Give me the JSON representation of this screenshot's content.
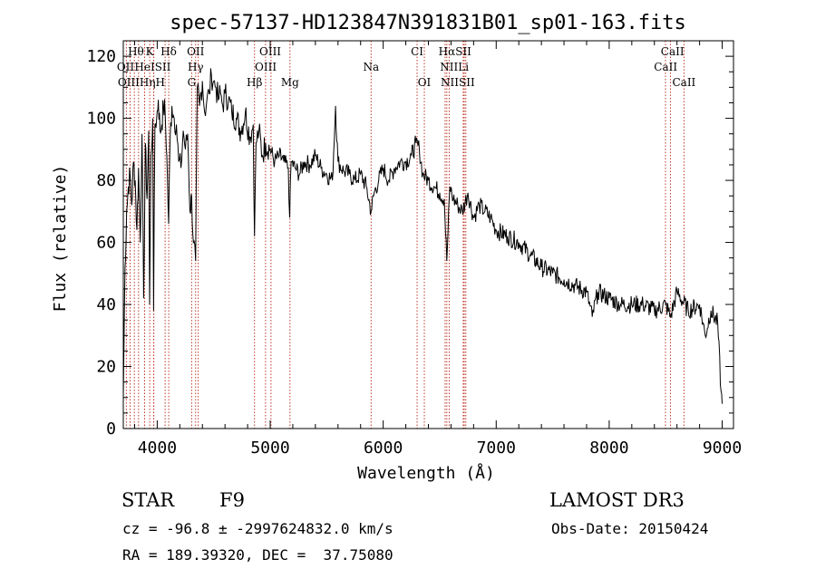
{
  "chart_data": {
    "type": "line",
    "title": "spec-57137-HD123847N391831B01_sp01-163.fits",
    "xlabel": "Wavelength (Å)",
    "ylabel": "Flux (relative)",
    "xlim": [
      3700,
      9100
    ],
    "ylim": [
      0,
      125
    ],
    "xticks": [
      4000,
      5000,
      6000,
      7000,
      8000,
      9000
    ],
    "yticks": [
      0,
      20,
      40,
      60,
      80,
      100,
      120
    ],
    "series": [
      {
        "name": "flux",
        "x": [
          3700,
          3715,
          3730,
          3745,
          3760,
          3775,
          3790,
          3805,
          3820,
          3835,
          3850,
          3865,
          3880,
          3895,
          3910,
          3925,
          3933,
          3945,
          3960,
          3968,
          3980,
          3995,
          4010,
          4025,
          4040,
          4055,
          4070,
          4085,
          4101,
          4115,
          4130,
          4150,
          4170,
          4190,
          4210,
          4230,
          4250,
          4270,
          4290,
          4305,
          4320,
          4340,
          4355,
          4375,
          4400,
          4420,
          4440,
          4460,
          4480,
          4500,
          4520,
          4540,
          4560,
          4580,
          4600,
          4630,
          4660,
          4700,
          4740,
          4780,
          4820,
          4850,
          4861,
          4875,
          4900,
          4930,
          4960,
          5000,
          5040,
          5080,
          5120,
          5160,
          5172,
          5185,
          5220,
          5260,
          5300,
          5350,
          5400,
          5450,
          5500,
          5550,
          5578,
          5600,
          5650,
          5700,
          5750,
          5800,
          5850,
          5893,
          5920,
          5960,
          6000,
          6050,
          6100,
          6150,
          6200,
          6250,
          6290,
          6320,
          6350,
          6400,
          6450,
          6500,
          6540,
          6563,
          6590,
          6620,
          6660,
          6700,
          6750,
          6800,
          6850,
          6900,
          6950,
          7000,
          7100,
          7200,
          7300,
          7400,
          7500,
          7600,
          7700,
          7800,
          7850,
          7900,
          8000,
          8100,
          8200,
          8300,
          8400,
          8500,
          8542,
          8600,
          8700,
          8800,
          8850,
          8900,
          8960,
          8990,
          9000
        ],
        "values": [
          10,
          52,
          70,
          78,
          82,
          72,
          86,
          80,
          64,
          84,
          60,
          95,
          42,
          92,
          74,
          96,
          40,
          88,
          100,
          38,
          98,
          100,
          106,
          96,
          98,
          104,
          102,
          88,
          66,
          94,
          104,
          100,
          98,
          86,
          84,
          96,
          90,
          95,
          70,
          75,
          60,
          54,
          110,
          104,
          112,
          102,
          106,
          108,
          114,
          112,
          110,
          106,
          108,
          104,
          108,
          106,
          102,
          100,
          96,
          102,
          94,
          98,
          62,
          92,
          96,
          88,
          92,
          90,
          86,
          88,
          86,
          84,
          68,
          86,
          84,
          82,
          86,
          85,
          88,
          84,
          82,
          80,
          104,
          86,
          83,
          82,
          80,
          82,
          78,
          70,
          76,
          80,
          84,
          80,
          84,
          86,
          86,
          88,
          92,
          90,
          82,
          80,
          78,
          76,
          74,
          54,
          78,
          74,
          72,
          70,
          76,
          68,
          72,
          70,
          68,
          64,
          62,
          60,
          56,
          52,
          50,
          48,
          46,
          44,
          36,
          44,
          42,
          40,
          40,
          40,
          38,
          40,
          36,
          44,
          38,
          40,
          30,
          38,
          34,
          12,
          8
        ]
      }
    ],
    "lines": [
      {
        "name": "Hε",
        "x": 3970
      },
      {
        "name": "Hζ",
        "x": 3889
      },
      {
        "name": "Hη",
        "x": 3835
      },
      {
        "name": "OII",
        "x": 3727
      },
      {
        "name": "OIII",
        "x": 3760
      },
      {
        "name": "Hθ",
        "x": 3798
      },
      {
        "name": "HeI",
        "x": 3888
      },
      {
        "name": "K",
        "x": 3934
      },
      {
        "name": "H",
        "x": 3968
      },
      {
        "name": "SII",
        "x": 4070
      },
      {
        "name": "Hδ",
        "x": 4102
      },
      {
        "name": "G",
        "x": 4305
      },
      {
        "name": "Hγ",
        "x": 4340
      },
      {
        "name": "OIII",
        "x": 4363
      },
      {
        "name": "Hβ",
        "x": 4861
      },
      {
        "name": "OIII",
        "x": 4959
      },
      {
        "name": "OIII",
        "x": 5007
      },
      {
        "name": "Mg",
        "x": 5175
      },
      {
        "name": "Na",
        "x": 5893
      },
      {
        "name": "OI",
        "x": 6300
      },
      {
        "name": "OI",
        "x": 6364
      },
      {
        "name": "NII",
        "x": 6548
      },
      {
        "name": "Hα",
        "x": 6563
      },
      {
        "name": "NII",
        "x": 6584
      },
      {
        "name": "Li",
        "x": 6708
      },
      {
        "name": "SII",
        "x": 6717
      },
      {
        "name": "SII",
        "x": 6731
      },
      {
        "name": "CaII",
        "x": 8498
      },
      {
        "name": "CaII",
        "x": 8542
      },
      {
        "name": "CaII",
        "x": 8662
      }
    ],
    "line_labels": [
      {
        "text": "Hθ",
        "row": 1,
        "x": 3812
      },
      {
        "text": "K",
        "row": 1,
        "x": 3934
      },
      {
        "text": "Hδ",
        "row": 1,
        "x": 4101
      },
      {
        "text": "OII",
        "row": 1,
        "x": 4340
      },
      {
        "text": "OIII",
        "row": 1,
        "x": 5000
      },
      {
        "text": "CI",
        "row": 1,
        "x": 6300
      },
      {
        "text": "HαSII",
        "row": 1,
        "x": 6635
      },
      {
        "text": "CaII",
        "row": 1,
        "x": 8560
      },
      {
        "text": "OII",
        "row": 2,
        "x": 3720
      },
      {
        "text": "HeISII",
        "row": 2,
        "x": 3960
      },
      {
        "text": "Hγ",
        "row": 2,
        "x": 4340
      },
      {
        "text": "OIII",
        "row": 2,
        "x": 4960
      },
      {
        "text": "Na",
        "row": 2,
        "x": 5893
      },
      {
        "text": "NIILi",
        "row": 2,
        "x": 6630
      },
      {
        "text": "CaII",
        "row": 2,
        "x": 8500
      },
      {
        "text": "OIIIHηH",
        "row": 3,
        "x": 3860
      },
      {
        "text": "G",
        "row": 3,
        "x": 4305
      },
      {
        "text": "Hβ",
        "row": 3,
        "x": 4861
      },
      {
        "text": "Mg",
        "row": 3,
        "x": 5175
      },
      {
        "text": "OI",
        "row": 3,
        "x": 6364
      },
      {
        "text": "NIISII",
        "row": 3,
        "x": 6660
      },
      {
        "text": "CaII",
        "row": 3,
        "x": 8662
      }
    ]
  },
  "info": {
    "object_type": "STAR",
    "subclass": "F9",
    "survey": "LAMOST DR3",
    "cz": "cz = -96.8 ± -2997624832.0 km/s",
    "obs_date": "Obs-Date: 20150424",
    "coords": "RA = 189.39320, DEC =  37.75080"
  }
}
